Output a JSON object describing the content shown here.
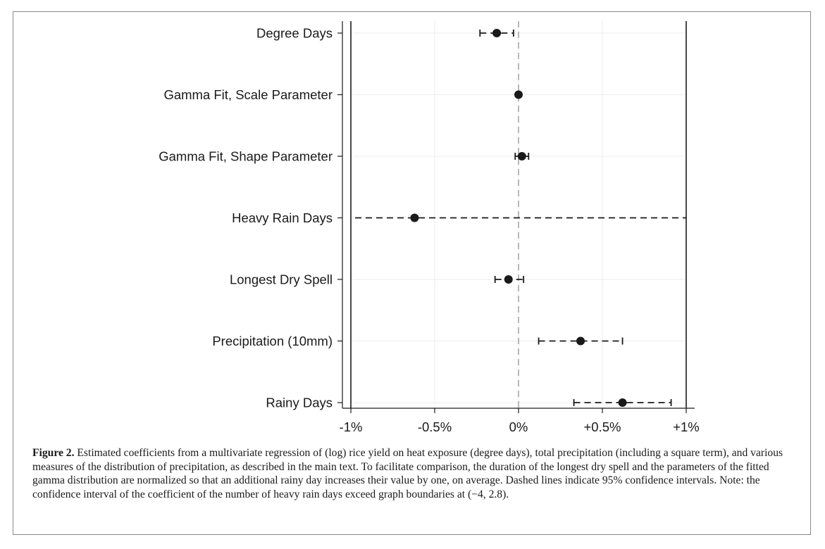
{
  "chart_data": {
    "type": "scatter",
    "subtype": "coefficient-plot-with-confidence-intervals",
    "orientation": "horizontal",
    "categories": [
      "Degree Days",
      "Gamma Fit, Scale Parameter",
      "Gamma Fit, Shape Parameter",
      "Heavy Rain Days",
      "Longest Dry Spell",
      "Precipitation (10mm)",
      "Rainy Days"
    ],
    "series": [
      {
        "coefficient": [
          -0.13,
          0.0,
          0.02,
          -0.62,
          -0.06,
          0.37,
          0.62
        ],
        "ci_low": [
          -0.23,
          -0.01,
          -0.02,
          -4,
          -0.14,
          0.12,
          0.33
        ],
        "ci_high": [
          -0.03,
          0.01,
          0.06,
          2.8,
          0.03,
          0.62,
          0.91
        ]
      }
    ],
    "x_ticks": [
      {
        "value": -1,
        "label": "-1%"
      },
      {
        "value": -0.5,
        "label": "-0.5%"
      },
      {
        "value": 0,
        "label": "0%"
      },
      {
        "value": 0.5,
        "label": "+0.5%"
      },
      {
        "value": 1,
        "label": "+1%"
      }
    ],
    "xlim": [
      -1,
      1
    ],
    "reference_line": 0,
    "grid": true,
    "legend": "none",
    "colors": {
      "marker": "#1a1a1a",
      "ci_line": "#1a1a1a",
      "reference_line": "#b8b8b8",
      "grid": "#eeeeee",
      "axis": "#1a1a1a"
    }
  },
  "caption": {
    "label": "Figure 2.",
    "text": "Estimated coefficients from a multivariate regression of (log) rice yield on heat exposure (degree days), total precipitation (including a square term), and various measures of the distribution of precipitation, as described in the main text. To facilitate comparison, the duration of the longest dry spell and the parameters of the fitted gamma distribution are normalized so that an additional rainy day increases their value by one, on average. Dashed lines indicate 95% confidence intervals. Note: the confidence interval of the coefficient of the number of heavy rain days exceed graph boundaries at (−4, 2.8)."
  }
}
